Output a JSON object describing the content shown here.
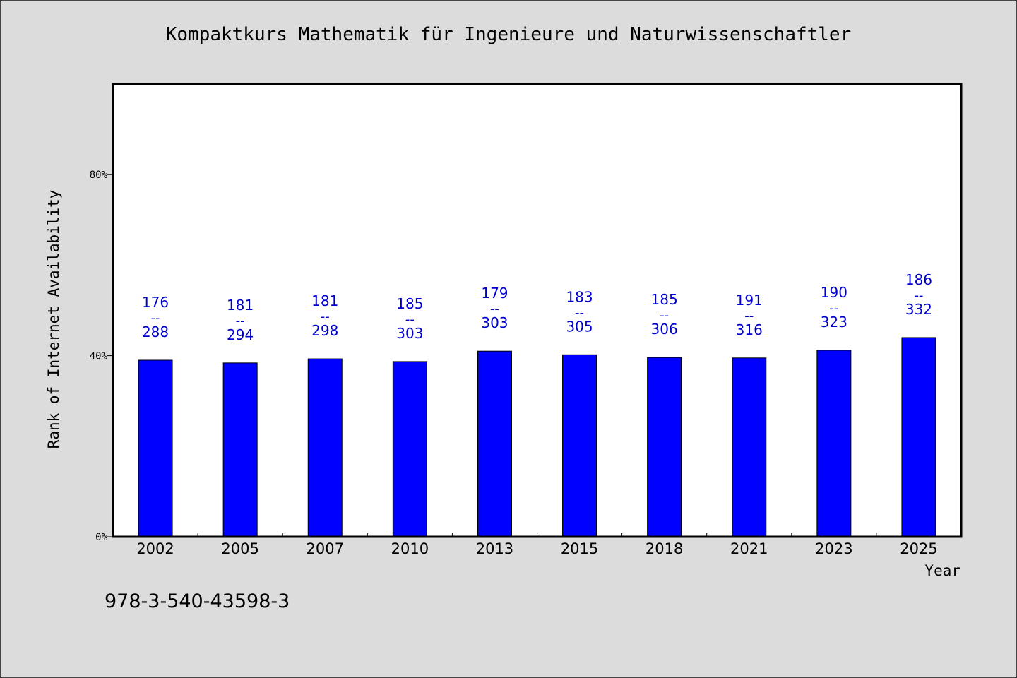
{
  "chart_data": {
    "type": "bar",
    "title": "Kompaktkurs Mathematik für Ingenieure und Naturwissenschaftler",
    "xlabel": "Year",
    "ylabel": "Rank of Internet Availability",
    "categories": [
      "2002",
      "2005",
      "2007",
      "2010",
      "2013",
      "2015",
      "2018",
      "2021",
      "2023",
      "2025"
    ],
    "values": [
      0.39,
      0.384,
      0.393,
      0.387,
      0.41,
      0.402,
      0.396,
      0.395,
      0.412,
      0.44
    ],
    "data_labels": [
      {
        "rank": "176",
        "separator": "--",
        "total": "288"
      },
      {
        "rank": "181",
        "separator": "--",
        "total": "294"
      },
      {
        "rank": "181",
        "separator": "--",
        "total": "298"
      },
      {
        "rank": "185",
        "separator": "--",
        "total": "303"
      },
      {
        "rank": "179",
        "separator": "--",
        "total": "303"
      },
      {
        "rank": "183",
        "separator": "--",
        "total": "305"
      },
      {
        "rank": "185",
        "separator": "--",
        "total": "306"
      },
      {
        "rank": "191",
        "separator": "--",
        "total": "316"
      },
      {
        "rank": "190",
        "separator": "--",
        "total": "323"
      },
      {
        "rank": "186",
        "separator": "--",
        "total": "332"
      }
    ],
    "yticks": [
      0,
      0.4,
      0.8
    ],
    "ytick_labels": [
      "0%",
      "40%",
      "80%"
    ],
    "ylim": [
      0,
      1.0
    ],
    "grid": false,
    "legend": "none",
    "colors": {
      "bar": "#0000ff",
      "label": "#0000cc",
      "background": "#dcdcdc",
      "plot_area": "#ffffff"
    }
  },
  "footer": {
    "isbn": "978-3-540-43598-3"
  }
}
